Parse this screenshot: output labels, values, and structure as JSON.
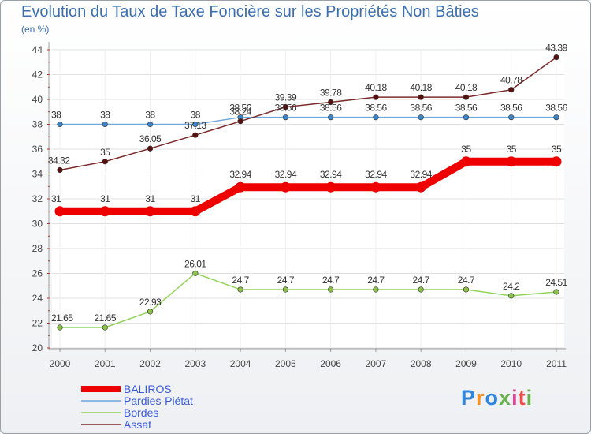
{
  "chart_data": {
    "type": "line",
    "title": "Evolution du Taux de Taxe Foncière sur les Propriétés Non Bâties",
    "subtitle": "(en %)",
    "xlabel": "",
    "ylabel": "",
    "categories": [
      "2000",
      "2001",
      "2002",
      "2003",
      "2004",
      "2005",
      "2006",
      "2007",
      "2008",
      "2009",
      "2010",
      "2011"
    ],
    "ylim": [
      20,
      44
    ],
    "yticks": [
      20,
      22,
      24,
      26,
      28,
      30,
      32,
      34,
      36,
      38,
      40,
      42,
      44
    ],
    "grid": true,
    "legend_position": "bottom-left",
    "series": [
      {
        "name": "BALIROS",
        "color": "#ee0000",
        "marker": "#ee0000",
        "values": [
          31,
          31,
          31,
          31,
          32.94,
          32.94,
          32.94,
          32.94,
          32.94,
          35,
          35,
          35
        ],
        "labels": [
          "31",
          "31",
          "31",
          "31",
          "32.94",
          "32.94",
          "32.94",
          "32.94",
          "32.94",
          "35",
          "35",
          "35"
        ]
      },
      {
        "name": "Pardies-Piétat",
        "color": "#6fa8dc",
        "marker": "#3d85c6",
        "values": [
          38,
          38,
          38,
          38,
          38.56,
          38.56,
          38.56,
          38.56,
          38.56,
          38.56,
          38.56,
          38.56
        ],
        "labels": [
          "38",
          "38",
          "38",
          "38",
          "38.56",
          "38.56",
          "38.56",
          "38.56",
          "38.56",
          "38.56",
          "38.56",
          "38.56"
        ]
      },
      {
        "name": "Bordes",
        "color": "#93d35a",
        "marker": "#8bc34a",
        "values": [
          21.65,
          21.65,
          22.93,
          26.01,
          24.7,
          24.7,
          24.7,
          24.7,
          24.7,
          24.7,
          24.2,
          24.51
        ],
        "labels": [
          "21.65",
          "21.65",
          "22.93",
          "26.01",
          "24.7",
          "24.7",
          "24.7",
          "24.7",
          "24.7",
          "24.7",
          "24.2",
          "24.51"
        ]
      },
      {
        "name": "Assat",
        "color": "#7b2b2b",
        "marker": "#5a0f0f",
        "values": [
          34.32,
          35,
          36.05,
          37.13,
          38.24,
          39.39,
          39.78,
          40.18,
          40.18,
          40.18,
          40.78,
          43.39
        ],
        "labels": [
          "34.32",
          "35",
          "36.05",
          "37.13",
          "38.24",
          "39.39",
          "39.78",
          "40.18",
          "40.18",
          "40.18",
          "40.78",
          "43.39"
        ]
      }
    ]
  },
  "branding": {
    "logo_text": "Proxiti"
  },
  "colors": {
    "title": "#3b6fb0",
    "legend_text": "#3b5bdb",
    "grid": "#e0e0e0",
    "axis": "#9e9e9e"
  }
}
